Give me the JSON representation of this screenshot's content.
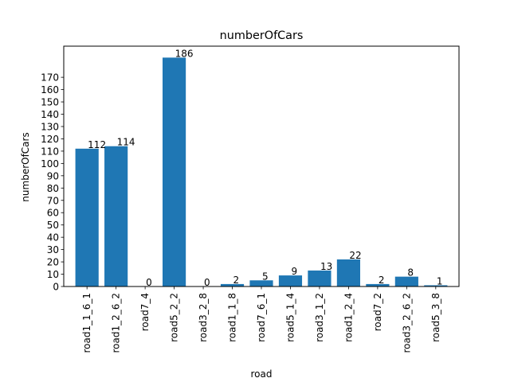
{
  "chart_data": {
    "type": "bar",
    "title": "numberOfCars",
    "xlabel": "road",
    "ylabel": "numberOfCars",
    "categories": [
      "road1_1_6_1",
      "road1_2_6_2",
      "road7_4",
      "road5_2_2",
      "road3_2_8",
      "road1_1_8",
      "road7_6_1",
      "road5_1_4",
      "road3_1_2",
      "road1_2_4",
      "road7_2",
      "road3_2_6_2",
      "road5_3_8"
    ],
    "values": [
      112,
      114,
      0,
      186,
      0,
      2,
      5,
      9,
      13,
      22,
      2,
      8,
      1
    ],
    "data_labels": [
      "112",
      "114",
      "0",
      "186",
      "0",
      "2",
      "5",
      "9",
      "13",
      "22",
      "2",
      "8",
      "1"
    ],
    "yticks": [
      0,
      10,
      20,
      30,
      40,
      50,
      60,
      70,
      80,
      90,
      100,
      110,
      120,
      130,
      140,
      150,
      160,
      170
    ],
    "ylim": [
      0,
      195.3
    ],
    "grid": false,
    "colors": {
      "bar": "#1f77b4"
    }
  }
}
